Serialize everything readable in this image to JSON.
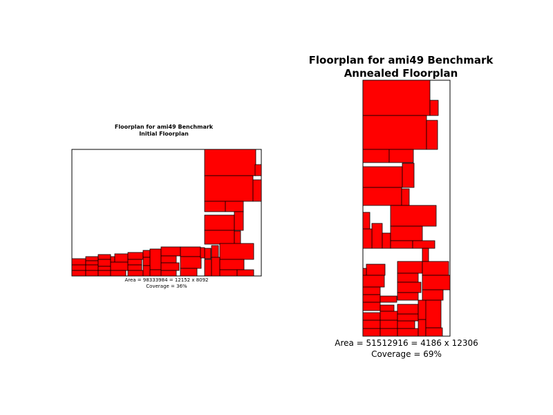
{
  "left_panel": {
    "title_line1": "Floorplan for ami49 Benchmark",
    "title_line2": "Initial Floorplan",
    "area_text": "Area = 98333984 = 12152 x 8092",
    "coverage_text": "Coverage = 36%"
  },
  "right_panel": {
    "title_line1": "Floorplan for ami49 Benchmark",
    "title_line2": "Annealed Floorplan",
    "area_text": "Area = 51512916 = 4186 x 12306",
    "coverage_text": "Coverage = 69%"
  },
  "colors": {
    "block_fill": "#ff0000",
    "block_stroke": "#000000",
    "frame_stroke": "#000000"
  }
}
